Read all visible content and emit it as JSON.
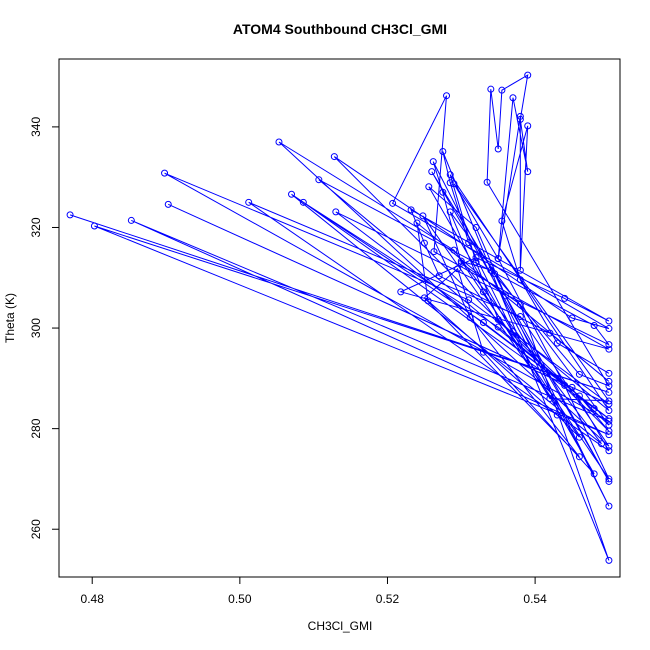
{
  "chart_data": {
    "type": "line",
    "title": "ATOM4 Southbound CH3Cl_GMI",
    "xlabel": "CH3Cl_GMI",
    "ylabel": "Theta (K)",
    "xlim": [
      0.4755,
      0.5515
    ],
    "ylim": [
      250.5,
      353.5
    ],
    "xticks": [
      "0.48",
      "0.50",
      "0.52",
      "0.54"
    ],
    "xtick_values": [
      0.48,
      0.5,
      0.52,
      0.54
    ],
    "yticks": [
      "260",
      "280",
      "300",
      "320",
      "340"
    ],
    "ytick_values": [
      260,
      280,
      300,
      320,
      340
    ],
    "grid": false,
    "line_color": "#0000ff",
    "marker": "open-circle",
    "points": [
      [
        0.477,
        322.5
      ],
      [
        0.55,
        287.2
      ],
      [
        0.4803,
        320.3
      ],
      [
        0.55,
        278.8
      ],
      [
        0.4853,
        321.4
      ],
      [
        0.55,
        281.5
      ],
      [
        0.4898,
        330.8
      ],
      [
        0.531,
        305.6
      ],
      [
        0.55,
        284.9
      ],
      [
        0.4903,
        324.6
      ],
      [
        0.545,
        288.2
      ],
      [
        0.55,
        275.6
      ],
      [
        0.5012,
        325.0
      ],
      [
        0.538,
        302.3
      ],
      [
        0.55,
        276.5
      ],
      [
        0.5053,
        337.0
      ],
      [
        0.529,
        315.5
      ],
      [
        0.549,
        277.0
      ],
      [
        0.507,
        326.6
      ],
      [
        0.533,
        301.1
      ],
      [
        0.55,
        282.0
      ],
      [
        0.5086,
        325.0
      ],
      [
        0.535,
        300.2
      ],
      [
        0.548,
        284.0
      ],
      [
        0.5107,
        329.5
      ],
      [
        0.548,
        300.5
      ],
      [
        0.55,
        296.7
      ],
      [
        0.513,
        323.1
      ],
      [
        0.546,
        286.5
      ],
      [
        0.55,
        279.5
      ],
      [
        0.5128,
        334.1
      ],
      [
        0.545,
        302.0
      ],
      [
        0.55,
        299.9
      ],
      [
        0.5207,
        324.8
      ],
      [
        0.528,
        346.2
      ],
      [
        0.5263,
        315.2
      ],
      [
        0.55,
        295.8
      ],
      [
        0.5218,
        307.2
      ],
      [
        0.532,
        314.0
      ],
      [
        0.544,
        305.9
      ],
      [
        0.55,
        301.4
      ],
      [
        0.5232,
        323.5
      ],
      [
        0.525,
        316.9
      ],
      [
        0.527,
        310.4
      ],
      [
        0.542,
        299.0
      ],
      [
        0.55,
        289.4
      ],
      [
        0.524,
        320.9
      ],
      [
        0.5255,
        305.4
      ],
      [
        0.543,
        282.7
      ],
      [
        0.546,
        278.3
      ],
      [
        0.5248,
        322.3
      ],
      [
        0.5312,
        302.1
      ],
      [
        0.546,
        274.4
      ],
      [
        0.525,
        306.0
      ],
      [
        0.5295,
        311.8
      ],
      [
        0.533,
        295.2
      ],
      [
        0.548,
        271.0
      ],
      [
        0.5256,
        328.1
      ],
      [
        0.532,
        320.0
      ],
      [
        0.536,
        306.4
      ],
      [
        0.55,
        269.5
      ],
      [
        0.526,
        331.1
      ],
      [
        0.5345,
        310.8
      ],
      [
        0.55,
        264.6
      ],
      [
        0.5262,
        333.1
      ],
      [
        0.5275,
        327.0
      ],
      [
        0.53,
        312.9
      ],
      [
        0.538,
        304.7
      ],
      [
        0.55,
        253.8
      ],
      [
        0.5275,
        335.1
      ],
      [
        0.5285,
        328.9
      ],
      [
        0.531,
        317.0
      ],
      [
        0.537,
        299.3
      ],
      [
        0.55,
        283.6
      ],
      [
        0.5285,
        330.5
      ],
      [
        0.532,
        313.1
      ],
      [
        0.535,
        301.7
      ],
      [
        0.55,
        280.7
      ],
      [
        0.5285,
        323.1
      ],
      [
        0.533,
        307.2
      ],
      [
        0.542,
        286.0
      ],
      [
        0.55,
        285.5
      ],
      [
        0.529,
        328.7
      ],
      [
        0.535,
        313.8
      ],
      [
        0.544,
        288.6
      ],
      [
        0.55,
        270.0
      ],
      [
        0.53,
        313.3
      ],
      [
        0.534,
        311.5
      ],
      [
        0.546,
        290.8
      ],
      [
        0.55,
        288.5
      ],
      [
        0.5335,
        329.0
      ],
      [
        0.534,
        347.5
      ],
      [
        0.535,
        335.6
      ],
      [
        0.5355,
        347.3
      ],
      [
        0.539,
        350.3
      ],
      [
        0.538,
        341.5
      ],
      [
        0.539,
        331.1
      ],
      [
        0.537,
        345.8
      ],
      [
        0.535,
        313.8
      ],
      [
        0.538,
        342.1
      ],
      [
        0.538,
        311.5
      ],
      [
        0.539,
        340.2
      ],
      [
        0.5355,
        321.3
      ],
      [
        0.538,
        309.6
      ],
      [
        0.543,
        297.0
      ],
      [
        0.55,
        291.0
      ]
    ]
  }
}
